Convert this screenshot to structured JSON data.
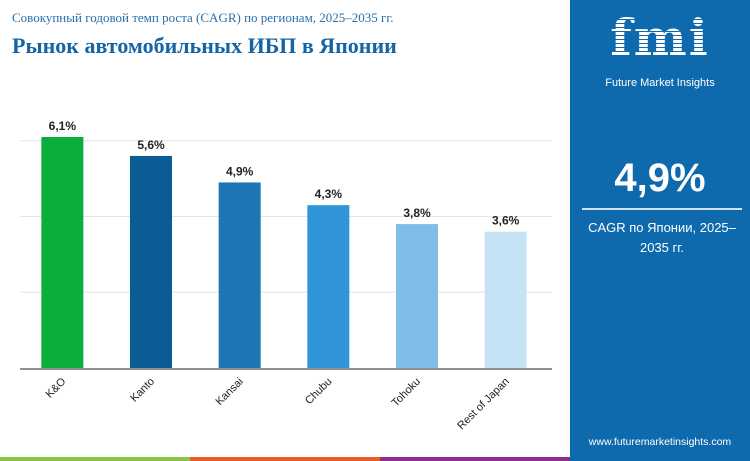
{
  "header": {
    "subtitle": "Совокупный годовой темп роста (CAGR) по регионам, 2025–2035 гг.",
    "title": "Рынок автомобильных ИБП в Японии"
  },
  "panel": {
    "logo_text": "Future Market Insights",
    "logo_mark": "fmi",
    "value": "4,9%",
    "caption": "CAGR по Японии, 2025–2035 гг.",
    "url": "www.futuremarketinsights.com"
  },
  "chart_data": {
    "type": "bar",
    "categories": [
      "K&O",
      "Kanto",
      "Kansai",
      "Chubu",
      "Tohoku",
      "Rest of Japan"
    ],
    "values": [
      6.1,
      5.6,
      4.9,
      4.3,
      3.8,
      3.6
    ],
    "labels": [
      "6,1%",
      "5,6%",
      "4,9%",
      "4,3%",
      "3,8%",
      "3,6%"
    ],
    "colors": [
      "#0aae3c",
      "#0b5b94",
      "#1f75b5",
      "#3196d8",
      "#7fbde6",
      "#c6e3f5"
    ],
    "ylim": [
      0,
      6.1
    ],
    "grid": true,
    "gridlines": [
      2,
      4,
      6
    ],
    "title": "",
    "xlabel": "",
    "ylabel": ""
  },
  "colors": {
    "panel": "#0f6aad",
    "title": "#1565a6",
    "strip": [
      "#8bc34a",
      "#f05a28",
      "#8e2c8e"
    ]
  }
}
